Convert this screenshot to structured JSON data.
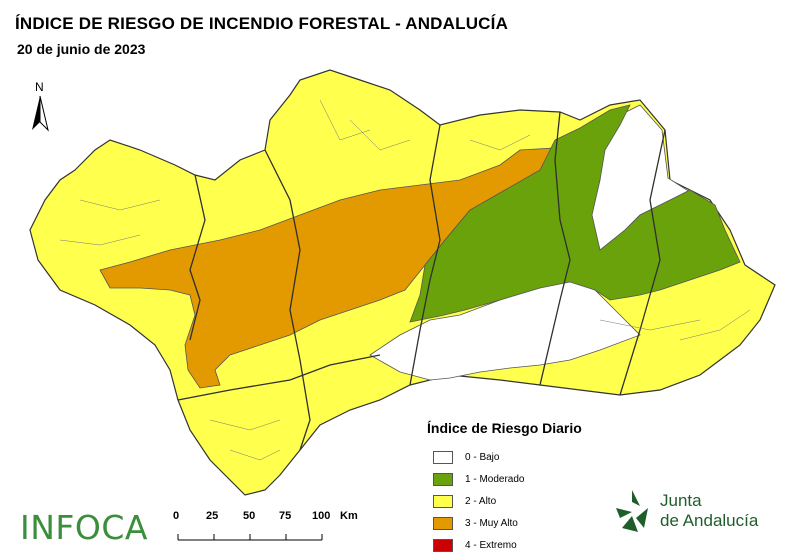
{
  "title": "ÍNDICE DE RIESGO DE INCENDIO FORESTAL - ANDALUCÍA",
  "date": "20 de junio de 2023",
  "north_label": "N",
  "legend": {
    "title": "Índice de Riesgo Diario",
    "items": [
      {
        "label": "0 - Bajo",
        "color": "#ffffff"
      },
      {
        "label": "1 - Moderado",
        "color": "#6aa20c"
      },
      {
        "label": "2 - Alto",
        "color": "#ffff4d"
      },
      {
        "label": "3 - Muy Alto",
        "color": "#e39900"
      },
      {
        "label": "4 - Extremo",
        "color": "#cc0000"
      }
    ]
  },
  "scale": {
    "ticks": [
      "0",
      "25",
      "50",
      "75",
      "100"
    ],
    "unit": "Km"
  },
  "logo_left": "INFOCA",
  "logo_right": {
    "line1": "Junta",
    "line2": "de Andalucía"
  }
}
